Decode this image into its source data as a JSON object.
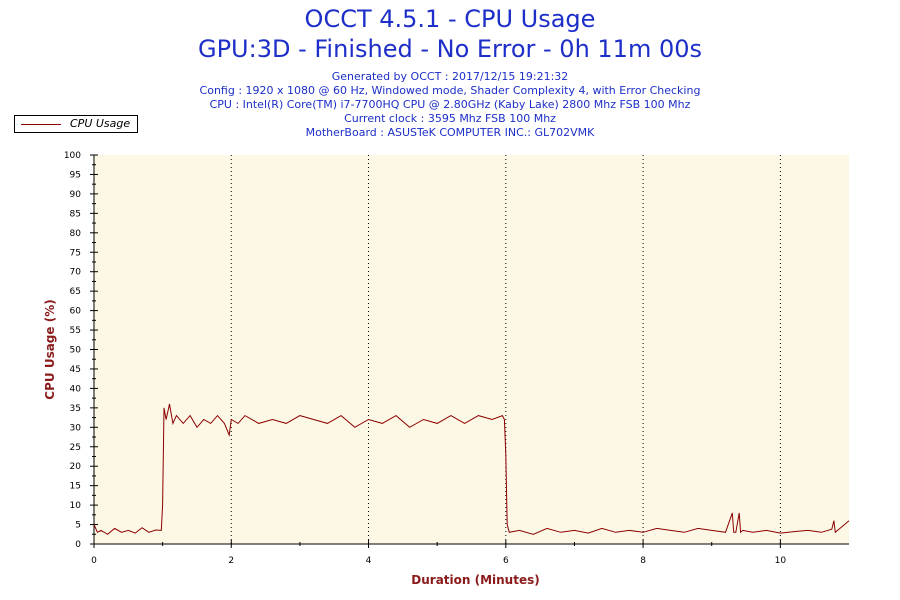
{
  "chart_data": {
    "type": "line",
    "title": "OCCT 4.5.1 - CPU Usage",
    "subtitle": "GPU:3D - Finished - No Error - 0h 11m 00s",
    "info_lines": [
      "Generated by OCCT : 2017/12/15 19:21:32",
      "Config : 1920 x 1080 @ 60 Hz, Windowed mode, Shader Complexity 4, with Error Checking",
      "CPU : Intel(R) Core(TM) i7-7700HQ CPU @ 2.80GHz (Kaby Lake) 2800 Mhz FSB 100 Mhz",
      "Current clock : 3595 Mhz FSB 100 Mhz",
      "MotherBoard : ASUSTeK COMPUTER INC.: GL702VMK"
    ],
    "xlabel": "Duration (Minutes)",
    "ylabel": "CPU Usage (%)",
    "xlim": [
      0,
      11
    ],
    "ylim": [
      0,
      100
    ],
    "x_ticks": [
      "0",
      "2",
      "4",
      "6",
      "8",
      "10"
    ],
    "y_ticks": [
      "0",
      "5",
      "10",
      "15",
      "20",
      "25",
      "30",
      "35",
      "40",
      "45",
      "50",
      "55",
      "60",
      "65",
      "70",
      "75",
      "80",
      "85",
      "90",
      "95",
      "100"
    ],
    "legend_position": "top-left",
    "colors": {
      "line": "#8b0000",
      "plot_bg": "#fdf8e6",
      "text": "#1d2fc8"
    },
    "series": [
      {
        "name": "CPU Usage",
        "x": [
          0,
          0.05,
          0.1,
          0.2,
          0.3,
          0.4,
          0.5,
          0.6,
          0.7,
          0.8,
          0.9,
          0.98,
          1.0,
          1.02,
          1.05,
          1.1,
          1.15,
          1.2,
          1.3,
          1.4,
          1.5,
          1.6,
          1.7,
          1.8,
          1.9,
          1.97,
          2.0,
          2.1,
          2.2,
          2.4,
          2.6,
          2.8,
          3.0,
          3.2,
          3.4,
          3.6,
          3.8,
          4.0,
          4.2,
          4.4,
          4.6,
          4.8,
          5.0,
          5.2,
          5.4,
          5.6,
          5.8,
          5.95,
          5.98,
          6.0,
          6.02,
          6.05,
          6.2,
          6.4,
          6.6,
          6.8,
          7.0,
          7.2,
          7.4,
          7.6,
          7.8,
          8.0,
          8.2,
          8.4,
          8.6,
          8.8,
          9.0,
          9.2,
          9.3,
          9.32,
          9.35,
          9.4,
          9.42,
          9.45,
          9.6,
          9.8,
          10.0,
          10.2,
          10.4,
          10.6,
          10.75,
          10.78,
          10.8,
          11.0
        ],
        "y": [
          5,
          3,
          3.5,
          2.5,
          4,
          3,
          3.5,
          2.8,
          4.2,
          3,
          3.6,
          3.5,
          10,
          35,
          32,
          36,
          31,
          33,
          31,
          33,
          30,
          32,
          31,
          33,
          31,
          28,
          32,
          31,
          33,
          31,
          32,
          31,
          33,
          32,
          31,
          33,
          30,
          32,
          31,
          33,
          30,
          32,
          31,
          33,
          31,
          33,
          32,
          33,
          32,
          23,
          5,
          3,
          3.5,
          2.5,
          4,
          3,
          3.5,
          2.8,
          4,
          3,
          3.5,
          3,
          4,
          3.5,
          3,
          4,
          3.5,
          3,
          8,
          3,
          3,
          8,
          3,
          3.5,
          3,
          3.5,
          2.8,
          3.2,
          3.5,
          3,
          3.8,
          6,
          3,
          6
        ]
      }
    ]
  }
}
